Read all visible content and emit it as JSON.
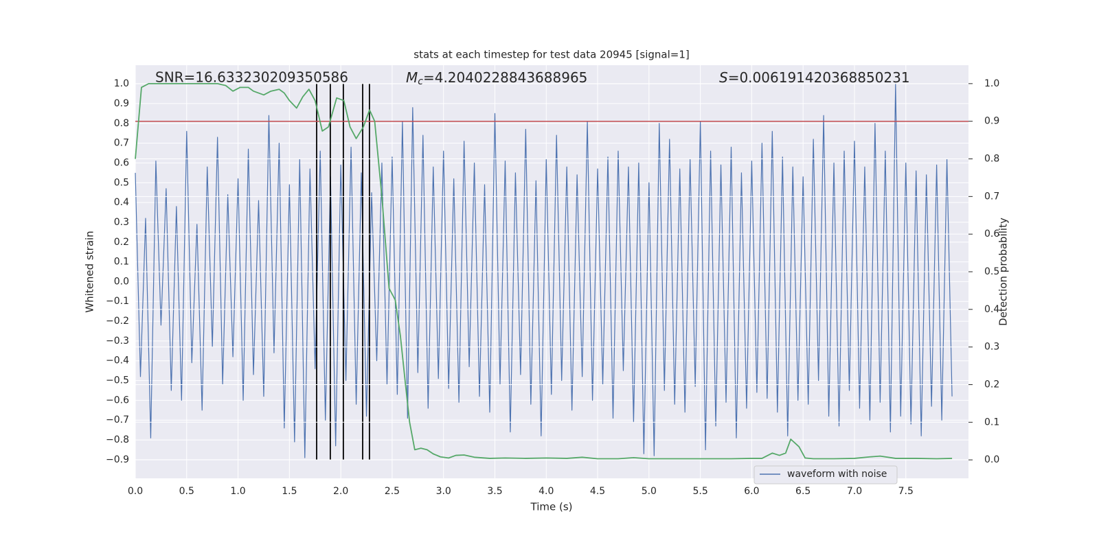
{
  "chart_data": {
    "type": "line",
    "title": "stats at each timestep for test data 20945 [signal=1]",
    "xlabel": "Time (s)",
    "ylabel": "Whitened strain",
    "y2label": "Detection probability",
    "annotations": [
      {
        "text": "SNR=16.633230209350586"
      },
      {
        "symbol": "M",
        "subscript": "c",
        "text": "=4.2040228843688965"
      },
      {
        "symbol": "S",
        "text": "=0.006191420368850231"
      }
    ],
    "xlim": [
      0,
      8.11
    ],
    "ylim": [
      -0.994,
      1.094
    ],
    "y2lim": [
      -0.049,
      1.049
    ],
    "xticks": [
      {
        "value": 0,
        "label": "0.0"
      },
      0.5,
      {
        "value": 1,
        "label": "1.0"
      },
      1.5,
      {
        "value": 2,
        "label": "2.0"
      },
      2.5,
      {
        "value": 3,
        "label": "3.0"
      },
      3.5,
      {
        "value": 4,
        "label": "4.0"
      },
      4.5,
      {
        "value": 5,
        "label": "5.0"
      },
      5.5,
      {
        "value": 6,
        "label": "6.0"
      },
      6.5,
      {
        "value": 7,
        "label": "7.0"
      },
      7.5
    ],
    "yticks": [
      {
        "value": -0.9,
        "label": "−0.9"
      },
      {
        "value": -0.8,
        "label": "−0.8"
      },
      {
        "value": -0.7,
        "label": "−0.7"
      },
      {
        "value": -0.6,
        "label": "−0.6"
      },
      {
        "value": -0.5,
        "label": "−0.5"
      },
      {
        "value": -0.4,
        "label": "−0.4"
      },
      {
        "value": -0.3,
        "label": "−0.3"
      },
      {
        "value": -0.2,
        "label": "−0.2"
      },
      {
        "value": -0.1,
        "label": "−0.1"
      },
      {
        "value": 0,
        "label": "0.0"
      },
      0.1,
      0.2,
      0.3,
      0.4,
      0.5,
      0.6,
      0.7,
      0.8,
      0.9,
      {
        "value": 1,
        "label": "1.0"
      }
    ],
    "y2ticks": [
      {
        "value": 0,
        "label": "0.0"
      },
      0.1,
      0.2,
      0.3,
      0.4,
      0.5,
      0.6,
      0.7,
      0.8,
      0.9,
      {
        "value": 1,
        "label": "1.0"
      }
    ],
    "grid": true,
    "series": [
      {
        "name": "waveform with noise",
        "color": "#4c72b0",
        "x": [
          0,
          0.05,
          0.1,
          0.15,
          0.2,
          0.25,
          0.3,
          0.35,
          0.4,
          0.45,
          0.5,
          0.55,
          0.6,
          0.65,
          0.7,
          0.75,
          0.8,
          0.85,
          0.9,
          0.95,
          1,
          1.05,
          1.1,
          1.15,
          1.2,
          1.25,
          1.3,
          1.35,
          1.4,
          1.45,
          1.5,
          1.55,
          1.6,
          1.65,
          1.7,
          1.75,
          1.8,
          1.85,
          1.9,
          1.95,
          2,
          2.05,
          2.1,
          2.15,
          2.2,
          2.25,
          2.3,
          2.35,
          2.4,
          2.45,
          2.5,
          2.55,
          2.6,
          2.65,
          2.7,
          2.75,
          2.8,
          2.85,
          2.9,
          2.95,
          3,
          3.05,
          3.1,
          3.15,
          3.2,
          3.25,
          3.3,
          3.35,
          3.4,
          3.45,
          3.5,
          3.55,
          3.6,
          3.65,
          3.7,
          3.75,
          3.8,
          3.85,
          3.9,
          3.95,
          4,
          4.05,
          4.1,
          4.15,
          4.2,
          4.25,
          4.3,
          4.35,
          4.4,
          4.45,
          4.5,
          4.55,
          4.6,
          4.65,
          4.7,
          4.75,
          4.8,
          4.85,
          4.9,
          4.95,
          5,
          5.05,
          5.1,
          5.15,
          5.2,
          5.25,
          5.3,
          5.35,
          5.4,
          5.45,
          5.5,
          5.55,
          5.6,
          5.65,
          5.7,
          5.75,
          5.8,
          5.85,
          5.9,
          5.95,
          6,
          6.05,
          6.1,
          6.15,
          6.2,
          6.25,
          6.3,
          6.35,
          6.4,
          6.45,
          6.5,
          6.55,
          6.6,
          6.65,
          6.7,
          6.75,
          6.8,
          6.85,
          6.9,
          6.95,
          7,
          7.05,
          7.1,
          7.15,
          7.2,
          7.25,
          7.3,
          7.35,
          7.4,
          7.45,
          7.5,
          7.55,
          7.6,
          7.65,
          7.7,
          7.75,
          7.8,
          7.85,
          7.9,
          7.95
        ],
        "values": [
          0.55,
          -0.48,
          0.32,
          -0.79,
          0.61,
          -0.22,
          0.47,
          -0.55,
          0.38,
          -0.6,
          0.76,
          -0.41,
          0.29,
          -0.65,
          0.58,
          -0.33,
          0.73,
          -0.52,
          0.44,
          -0.38,
          0.52,
          -0.6,
          0.67,
          -0.47,
          0.41,
          -0.58,
          0.84,
          -0.36,
          0.7,
          -0.74,
          0.49,
          -0.81,
          0.62,
          -0.89,
          0.57,
          -0.44,
          0.66,
          -0.7,
          0.53,
          -0.83,
          0.59,
          -0.5,
          0.68,
          -0.62,
          0.55,
          -0.68,
          0.45,
          -0.4,
          0.6,
          -0.52,
          0.63,
          -0.57,
          0.81,
          -0.69,
          0.88,
          -0.46,
          0.74,
          -0.64,
          0.58,
          -0.49,
          0.66,
          -0.54,
          0.52,
          -0.61,
          0.71,
          -0.43,
          0.6,
          -0.58,
          0.49,
          -0.66,
          0.85,
          -0.52,
          0.61,
          -0.76,
          0.55,
          -0.47,
          0.77,
          -0.62,
          0.51,
          -0.78,
          0.62,
          -0.57,
          0.74,
          -0.5,
          0.58,
          -0.65,
          0.54,
          -0.48,
          0.81,
          -0.6,
          0.57,
          -0.52,
          0.63,
          -0.69,
          0.66,
          -0.45,
          0.58,
          -0.71,
          0.6,
          -0.87,
          0.5,
          -0.88,
          0.8,
          -0.55,
          0.72,
          -0.62,
          0.57,
          -0.66,
          0.62,
          -0.53,
          0.81,
          -0.85,
          0.66,
          -0.73,
          0.59,
          -0.61,
          0.68,
          -0.79,
          0.55,
          -0.64,
          0.61,
          -0.56,
          0.7,
          -0.59,
          0.76,
          -0.66,
          0.63,
          -0.78,
          0.58,
          -0.6,
          0.53,
          -0.62,
          0.72,
          -0.5,
          0.84,
          -0.68,
          0.6,
          -0.73,
          0.66,
          -0.55,
          0.71,
          -0.64,
          0.58,
          -0.7,
          0.8,
          -0.61,
          0.66,
          -0.76,
          1.0,
          -0.68,
          0.6,
          -0.72,
          0.56,
          -0.78,
          0.54,
          -0.63,
          0.59,
          -0.7,
          0.62,
          -0.58
        ]
      },
      {
        "color": "#55a868",
        "axis": "y2",
        "x": [
          0,
          0.06,
          0.13,
          0.2,
          0.3,
          0.4,
          0.5,
          0.6,
          0.7,
          0.8,
          0.88,
          0.95,
          1.02,
          1.1,
          1.15,
          1.25,
          1.32,
          1.4,
          1.45,
          1.5,
          1.57,
          1.63,
          1.69,
          1.75,
          1.82,
          1.88,
          1.96,
          2.03,
          2.09,
          2.15,
          2.22,
          2.28,
          2.33,
          2.4,
          2.47,
          2.53,
          2.58,
          2.63,
          2.67,
          2.72,
          2.78,
          2.84,
          2.9,
          2.97,
          3.05,
          3.12,
          3.2,
          3.3,
          3.45,
          3.6,
          3.8,
          4.0,
          4.2,
          4.35,
          4.5,
          4.7,
          4.85,
          5.0,
          5.2,
          5.4,
          5.6,
          5.8,
          6.0,
          6.1,
          6.2,
          6.27,
          6.33,
          6.38,
          6.46,
          6.52,
          6.6,
          6.8,
          7.0,
          7.15,
          7.25,
          7.4,
          7.6,
          7.8,
          7.95
        ],
        "values": [
          0.8,
          0.99,
          1,
          1,
          1,
          1,
          1,
          1,
          1,
          1,
          0.995,
          0.98,
          0.99,
          0.99,
          0.98,
          0.97,
          0.98,
          0.985,
          0.975,
          0.955,
          0.935,
          0.965,
          0.985,
          0.955,
          0.874,
          0.885,
          0.962,
          0.955,
          0.885,
          0.854,
          0.885,
          0.93,
          0.9,
          0.7,
          0.456,
          0.425,
          0.33,
          0.2,
          0.1,
          0.027,
          0.031,
          0.027,
          0.016,
          0.008,
          0.005,
          0.012,
          0.013,
          0.007,
          0.004,
          0.005,
          0.004,
          0.005,
          0.004,
          0.007,
          0.003,
          0.003,
          0.006,
          0.003,
          0.003,
          0.003,
          0.003,
          0.003,
          0.004,
          0.004,
          0.018,
          0.012,
          0.018,
          0.055,
          0.035,
          0.005,
          0.003,
          0.003,
          0.004,
          0.008,
          0.01,
          0.004,
          0.004,
          0.003,
          0.004
        ]
      }
    ],
    "hlines": [
      {
        "y": 0.9,
        "axis": "y2",
        "color": "#c44e52"
      }
    ],
    "vlines": {
      "x": [
        1.765,
        1.898,
        2.025,
        2.213,
        2.279
      ],
      "ymin": 0,
      "ymax": 1,
      "axis": "y2",
      "color": "#000000"
    }
  }
}
